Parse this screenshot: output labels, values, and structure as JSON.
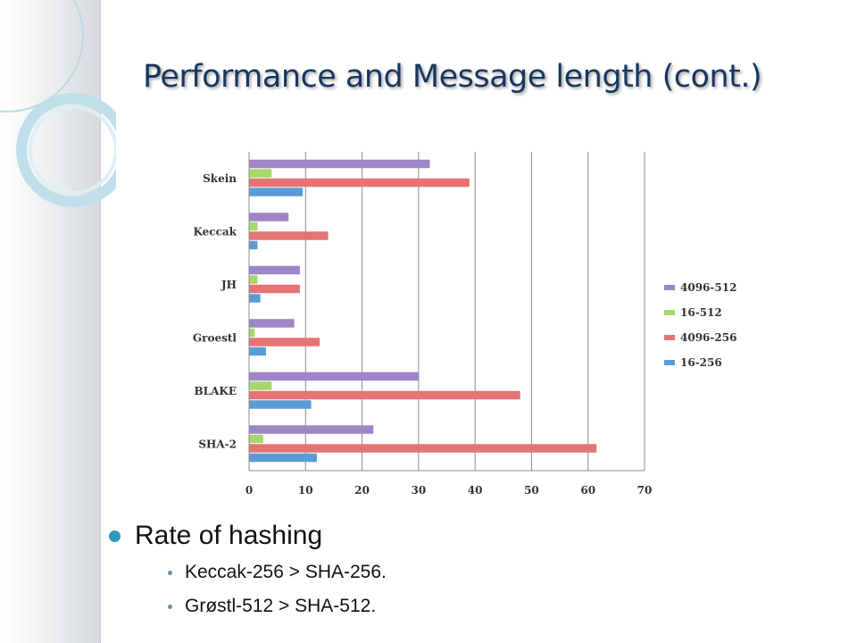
{
  "slide": {
    "title": "Performance and Message length (cont.)",
    "bullet": "Rate of hashing",
    "sub_bullets": [
      "Keccak-256 > SHA-256.",
      "Grøstl-512 > SHA-512."
    ]
  },
  "colors": {
    "title": "#17375e",
    "bullet": "#2c9ac0",
    "deco_ring": "#9ccbdc"
  },
  "chart_data": {
    "type": "bar",
    "orientation": "horizontal",
    "categories": [
      "Skein",
      "Keccak",
      "JH",
      "Groestl",
      "BLAKE",
      "SHA-2"
    ],
    "series": [
      {
        "name": "4096-512",
        "color": "#9f84c6",
        "values": [
          32,
          7,
          9,
          8,
          30,
          22
        ]
      },
      {
        "name": "16-512",
        "color": "#a5d86b",
        "values": [
          4,
          1.5,
          1.5,
          1,
          4,
          2.5
        ]
      },
      {
        "name": "4096-256",
        "color": "#e57373",
        "values": [
          39,
          14,
          9,
          12.5,
          48,
          61.5
        ]
      },
      {
        "name": "16-256",
        "color": "#5b9bd5",
        "values": [
          9.5,
          1.5,
          2,
          3,
          11,
          12
        ]
      }
    ],
    "xlim": [
      0,
      70
    ],
    "xticks": [
      "0",
      "10",
      "20",
      "30",
      "40",
      "50",
      "60",
      "70"
    ],
    "grid": true,
    "legend_position": "right"
  }
}
